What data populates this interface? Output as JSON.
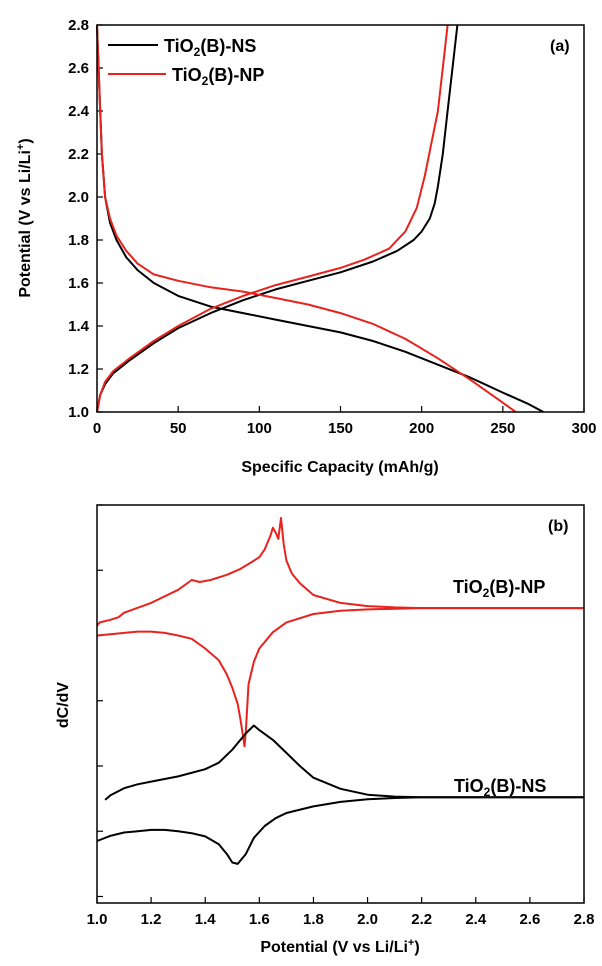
{
  "chart_data": [
    {
      "type": "line",
      "panel_label": "(a)",
      "xlabel": "Specific Capacity (mAh/g)",
      "ylabel_parts": {
        "main": "Potential (V vs Li/Li",
        "sup": "+",
        "tail": ")"
      },
      "xlim": [
        0,
        300
      ],
      "ylim": [
        1.0,
        2.8
      ],
      "x_ticks": [
        0,
        50,
        100,
        150,
        200,
        250,
        300
      ],
      "y_ticks": [
        1.0,
        1.2,
        1.4,
        1.6,
        1.8,
        2.0,
        2.2,
        2.4,
        2.6,
        2.8
      ],
      "x_tick_labels": [
        "0",
        "50",
        "100",
        "150",
        "200",
        "250",
        "300"
      ],
      "y_tick_labels": [
        "1.0",
        "1.2",
        "1.4",
        "1.6",
        "1.8",
        "2.0",
        "2.2",
        "2.4",
        "2.6",
        "2.8"
      ],
      "legend_position": "top-left",
      "legend": [
        {
          "name_parts": {
            "a": "TiO",
            "sub": "2",
            "b": "(B)-NS"
          },
          "color": "#000000"
        },
        {
          "name_parts": {
            "a": "TiO",
            "sub": "2",
            "b": "(B)-NP"
          },
          "color": "#e8221c"
        }
      ],
      "series": [
        {
          "color": "#000000",
          "curves": [
            {
              "role": "discharge",
              "x": [
                0,
                1,
                2,
                3,
                5,
                8,
                12,
                18,
                25,
                35,
                50,
                70,
                90,
                110,
                130,
                150,
                170,
                190,
                210,
                230,
                250,
                265,
                275
              ],
              "y": [
                2.8,
                2.6,
                2.4,
                2.2,
                2.0,
                1.88,
                1.8,
                1.72,
                1.66,
                1.6,
                1.54,
                1.49,
                1.46,
                1.43,
                1.4,
                1.37,
                1.33,
                1.28,
                1.22,
                1.16,
                1.09,
                1.04,
                1.0
              ]
            },
            {
              "role": "charge",
              "x": [
                0,
                2,
                5,
                10,
                20,
                35,
                50,
                70,
                90,
                110,
                130,
                150,
                170,
                185,
                195,
                200,
                205,
                208,
                210,
                213,
                216,
                219,
                222
              ],
              "y": [
                1.0,
                1.08,
                1.13,
                1.18,
                1.24,
                1.32,
                1.39,
                1.46,
                1.52,
                1.57,
                1.61,
                1.65,
                1.7,
                1.75,
                1.8,
                1.84,
                1.9,
                1.97,
                2.05,
                2.2,
                2.4,
                2.6,
                2.8
              ]
            }
          ]
        },
        {
          "color": "#e8221c",
          "curves": [
            {
              "role": "discharge",
              "x": [
                0,
                1,
                2,
                3,
                5,
                8,
                12,
                18,
                25,
                35,
                50,
                70,
                90,
                110,
                130,
                150,
                170,
                190,
                210,
                230,
                245,
                258
              ],
              "y": [
                2.8,
                2.6,
                2.4,
                2.2,
                2.0,
                1.9,
                1.82,
                1.75,
                1.69,
                1.64,
                1.61,
                1.58,
                1.56,
                1.53,
                1.5,
                1.46,
                1.41,
                1.34,
                1.25,
                1.15,
                1.07,
                1.0
              ]
            },
            {
              "role": "charge",
              "x": [
                0,
                2,
                5,
                10,
                20,
                35,
                50,
                70,
                90,
                110,
                130,
                150,
                165,
                180,
                190,
                197,
                202,
                206,
                210,
                213,
                216
              ],
              "y": [
                1.0,
                1.08,
                1.14,
                1.19,
                1.25,
                1.33,
                1.4,
                1.48,
                1.54,
                1.59,
                1.63,
                1.67,
                1.71,
                1.76,
                1.84,
                1.95,
                2.1,
                2.25,
                2.4,
                2.6,
                2.8
              ]
            }
          ]
        }
      ]
    },
    {
      "type": "line",
      "panel_label": "(b)",
      "xlabel_parts": {
        "main": "Potential (V vs Li/Li",
        "sup": "+",
        "tail": ")"
      },
      "ylabel": "dC/dV",
      "xlim": [
        1.0,
        2.8
      ],
      "ylim": [
        0,
        6.1
      ],
      "x_ticks": [
        1.0,
        1.2,
        1.4,
        1.6,
        1.8,
        2.0,
        2.2,
        2.4,
        2.6,
        2.8
      ],
      "x_tick_labels": [
        "1.0",
        "1.2",
        "1.4",
        "1.6",
        "1.8",
        "2.0",
        "2.2",
        "2.4",
        "2.6",
        "2.8"
      ],
      "y_ticks": [
        0.1,
        1.1,
        2.1,
        3.1,
        4.1,
        5.1,
        6.1
      ],
      "y_tick_labels_shown": false,
      "series": [
        {
          "label_parts": {
            "a": "TiO",
            "sub": "2",
            "b": "(B)-NP"
          },
          "color": "#e8221c",
          "curves": [
            {
              "role": "charge",
              "x": [
                1.0,
                1.01,
                1.05,
                1.08,
                1.1,
                1.2,
                1.3,
                1.35,
                1.38,
                1.42,
                1.48,
                1.53,
                1.57,
                1.6,
                1.62,
                1.64,
                1.65,
                1.66,
                1.67,
                1.68,
                1.69,
                1.7,
                1.72,
                1.75,
                1.8,
                1.9,
                2.0,
                2.1,
                2.2,
                2.4,
                2.6,
                2.8
              ],
              "y": [
                4.25,
                4.3,
                4.34,
                4.38,
                4.45,
                4.6,
                4.8,
                4.95,
                4.92,
                4.95,
                5.03,
                5.12,
                5.22,
                5.3,
                5.42,
                5.62,
                5.75,
                5.68,
                5.58,
                5.9,
                5.5,
                5.25,
                5.05,
                4.9,
                4.72,
                4.6,
                4.55,
                4.53,
                4.52,
                4.52,
                4.52,
                4.52
              ]
            },
            {
              "role": "discharge",
              "x": [
                1.0,
                1.05,
                1.1,
                1.15,
                1.2,
                1.25,
                1.3,
                1.35,
                1.4,
                1.45,
                1.48,
                1.5,
                1.52,
                1.53,
                1.54,
                1.545,
                1.55,
                1.555,
                1.56,
                1.58,
                1.6,
                1.65,
                1.7,
                1.8,
                1.9,
                2.0,
                2.2,
                2.4,
                2.6,
                2.8
              ],
              "y": [
                4.1,
                4.12,
                4.14,
                4.16,
                4.16,
                4.14,
                4.1,
                4.05,
                3.9,
                3.72,
                3.5,
                3.3,
                3.05,
                2.82,
                2.55,
                2.4,
                2.62,
                3.0,
                3.35,
                3.7,
                3.9,
                4.15,
                4.3,
                4.43,
                4.48,
                4.5,
                4.52,
                4.52,
                4.52,
                4.52
              ]
            }
          ]
        },
        {
          "label_parts": {
            "a": "TiO",
            "sub": "2",
            "b": "(B)-NS"
          },
          "color": "#000000",
          "curves": [
            {
              "role": "charge",
              "x": [
                1.03,
                1.05,
                1.1,
                1.15,
                1.2,
                1.3,
                1.4,
                1.45,
                1.5,
                1.55,
                1.58,
                1.6,
                1.65,
                1.7,
                1.75,
                1.8,
                1.9,
                2.0,
                2.1,
                2.2,
                2.4,
                2.6,
                2.8
              ],
              "y": [
                1.58,
                1.65,
                1.76,
                1.82,
                1.86,
                1.94,
                2.05,
                2.15,
                2.35,
                2.6,
                2.72,
                2.65,
                2.5,
                2.3,
                2.1,
                1.92,
                1.75,
                1.66,
                1.63,
                1.62,
                1.62,
                1.62,
                1.62
              ]
            },
            {
              "role": "discharge",
              "x": [
                1.0,
                1.05,
                1.1,
                1.15,
                1.2,
                1.25,
                1.3,
                1.35,
                1.4,
                1.45,
                1.48,
                1.5,
                1.52,
                1.55,
                1.58,
                1.62,
                1.66,
                1.7,
                1.8,
                1.9,
                2.0,
                2.1,
                2.2,
                2.4,
                2.6,
                2.8
              ],
              "y": [
                0.95,
                1.03,
                1.08,
                1.1,
                1.12,
                1.12,
                1.1,
                1.07,
                1.02,
                0.9,
                0.75,
                0.62,
                0.6,
                0.75,
                1.0,
                1.18,
                1.3,
                1.38,
                1.48,
                1.55,
                1.59,
                1.61,
                1.62,
                1.62,
                1.62,
                1.62
              ]
            }
          ]
        }
      ]
    }
  ]
}
